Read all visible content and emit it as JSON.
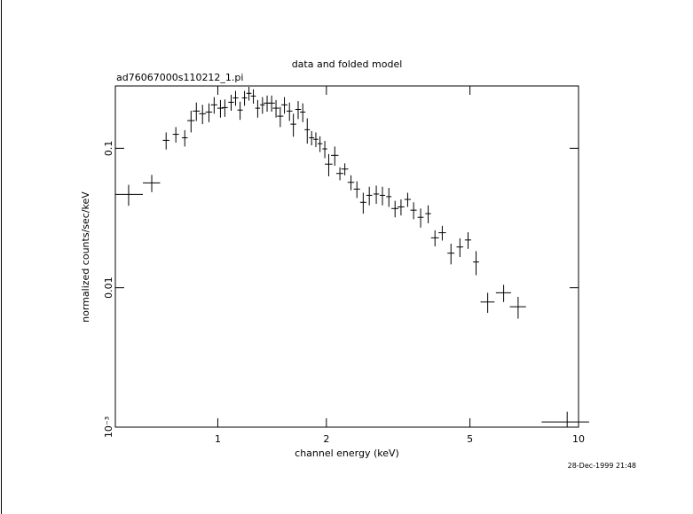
{
  "chart_data": {
    "type": "scatter",
    "title": "data and folded model",
    "subtitle": "ad76067000s110212_1.pi",
    "x_label": "channel energy (keV)",
    "y_label": "normalized counts/sec/keV",
    "timestamp": "28-Dec-1999 21:48",
    "x_log": true,
    "y_log": true,
    "color": "#000000",
    "xlim": [
      0.52,
      10
    ],
    "ylim": [
      0.001,
      0.28
    ],
    "xticks": [
      1,
      2,
      5,
      10
    ],
    "yticks": [
      {
        "value": 0.001,
        "label": "10⁻³"
      },
      0.01,
      0.1
    ],
    "series": [
      {
        "x": [
          0.566,
          0.656,
          0.719,
          0.765,
          0.81,
          0.843,
          0.872,
          0.907,
          0.945,
          0.977,
          1.017,
          1.046,
          1.089,
          1.12,
          1.153,
          1.186,
          1.22,
          1.255,
          1.29,
          1.33,
          1.37,
          1.41,
          1.45,
          1.49,
          1.53,
          1.58,
          1.62,
          1.67,
          1.72,
          1.77,
          1.82,
          1.87,
          1.92,
          1.98,
          2.03,
          2.11,
          2.18,
          2.25,
          2.34,
          2.43,
          2.53,
          2.63,
          2.75,
          2.86,
          2.98,
          3.1,
          3.22,
          3.36,
          3.49,
          3.65,
          3.83,
          4.0,
          4.19,
          4.43,
          4.69,
          4.94,
          5.2,
          5.6,
          6.2,
          6.8,
          9.3
        ],
        "xerr": [
          0.054,
          0.036,
          0.015,
          0.015,
          0.015,
          0.02,
          0.02,
          0.02,
          0.02,
          0.02,
          0.02,
          0.02,
          0.02,
          0.02,
          0.02,
          0.02,
          0.02,
          0.02,
          0.02,
          0.02,
          0.03,
          0.03,
          0.03,
          0.03,
          0.03,
          0.03,
          0.03,
          0.03,
          0.03,
          0.03,
          0.03,
          0.03,
          0.03,
          0.03,
          0.05,
          0.05,
          0.05,
          0.05,
          0.05,
          0.05,
          0.05,
          0.05,
          0.05,
          0.05,
          0.05,
          0.07,
          0.07,
          0.07,
          0.07,
          0.07,
          0.07,
          0.1,
          0.1,
          0.1,
          0.1,
          0.1,
          0.1,
          0.25,
          0.3,
          0.35,
          1.4
        ],
        "values": [
          0.0467,
          0.0565,
          0.114,
          0.126,
          0.119,
          0.158,
          0.185,
          0.177,
          0.182,
          0.205,
          0.194,
          0.196,
          0.214,
          0.23,
          0.188,
          0.23,
          0.248,
          0.237,
          0.194,
          0.205,
          0.211,
          0.211,
          0.194,
          0.17,
          0.205,
          0.185,
          0.149,
          0.19,
          0.182,
          0.136,
          0.119,
          0.116,
          0.108,
          0.099,
          0.077,
          0.089,
          0.066,
          0.071,
          0.057,
          0.051,
          0.041,
          0.046,
          0.047,
          0.046,
          0.045,
          0.037,
          0.038,
          0.043,
          0.036,
          0.032,
          0.034,
          0.0228,
          0.0248,
          0.0177,
          0.0196,
          0.022,
          0.0153,
          0.0079,
          0.0092,
          0.0073,
          0.00109
        ],
        "yerr": [
          0.008,
          0.008,
          0.016,
          0.016,
          0.016,
          0.028,
          0.028,
          0.028,
          0.028,
          0.028,
          0.028,
          0.028,
          0.028,
          0.028,
          0.028,
          0.028,
          0.028,
          0.028,
          0.028,
          0.028,
          0.028,
          0.028,
          0.028,
          0.028,
          0.028,
          0.028,
          0.028,
          0.028,
          0.028,
          0.028,
          0.014,
          0.014,
          0.014,
          0.014,
          0.014,
          0.014,
          0.007,
          0.007,
          0.007,
          0.007,
          0.007,
          0.007,
          0.007,
          0.007,
          0.007,
          0.005,
          0.005,
          0.005,
          0.005,
          0.005,
          0.005,
          0.003,
          0.003,
          0.003,
          0.003,
          0.003,
          0.003,
          0.0013,
          0.0013,
          0.0013,
          0.0002
        ]
      }
    ]
  }
}
